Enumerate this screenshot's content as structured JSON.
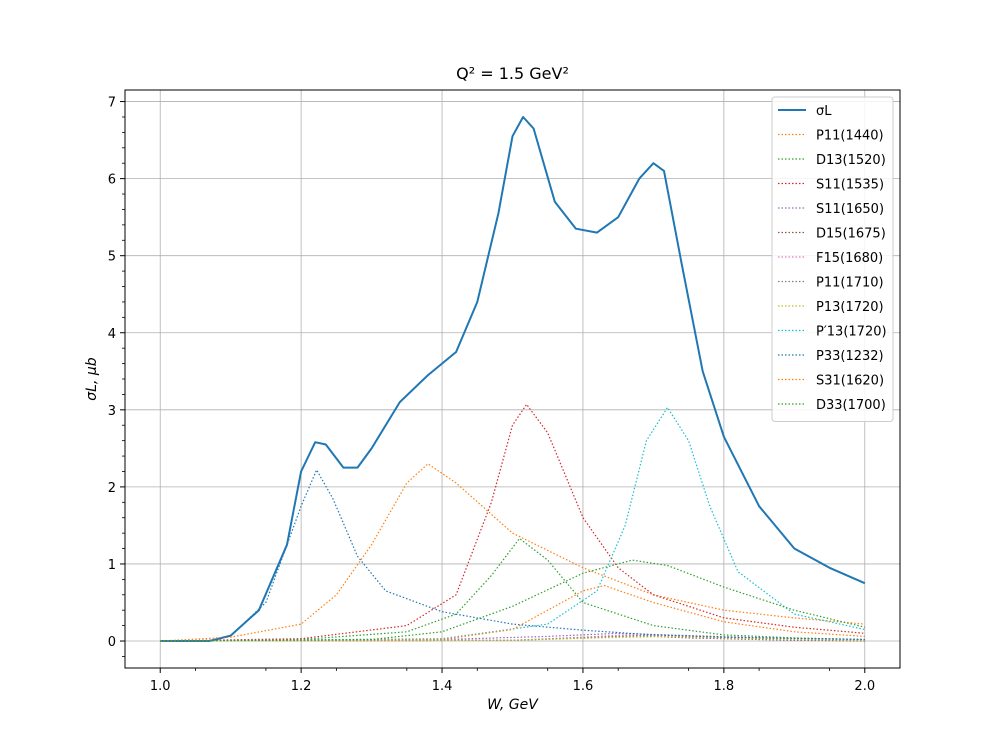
{
  "chart_data": {
    "type": "line",
    "title": "Q² = 1.5 GeV²",
    "xlabel": "W, GeV",
    "ylabel": "σL, μb",
    "xlim": [
      0.95,
      2.05
    ],
    "ylim": [
      -0.35,
      7.15
    ],
    "x_ticks": [
      "1.0",
      "1.2",
      "1.4",
      "1.6",
      "1.8",
      "2.0"
    ],
    "y_ticks": [
      "0",
      "1",
      "2",
      "3",
      "4",
      "5",
      "6",
      "7"
    ],
    "grid": true,
    "legend_position": "top-right",
    "series": [
      {
        "name": "σL",
        "color": "#1f77b4",
        "style": "solid",
        "x": [
          1.0,
          1.07,
          1.1,
          1.14,
          1.18,
          1.2,
          1.22,
          1.235,
          1.26,
          1.28,
          1.3,
          1.34,
          1.38,
          1.42,
          1.45,
          1.48,
          1.5,
          1.515,
          1.53,
          1.56,
          1.59,
          1.62,
          1.65,
          1.68,
          1.7,
          1.715,
          1.74,
          1.77,
          1.8,
          1.85,
          1.9,
          1.95,
          2.0
        ],
        "y": [
          0.0,
          0.0,
          0.07,
          0.4,
          1.25,
          2.2,
          2.58,
          2.55,
          2.25,
          2.25,
          2.5,
          3.1,
          3.45,
          3.75,
          4.4,
          5.55,
          6.55,
          6.8,
          6.65,
          5.7,
          5.35,
          5.3,
          5.5,
          6.0,
          6.2,
          6.1,
          4.9,
          3.5,
          2.65,
          1.75,
          1.2,
          0.95,
          0.75
        ]
      },
      {
        "name": "P11(1440)",
        "color": "#ff7f0e",
        "style": "dotted",
        "x": [
          1.0,
          1.1,
          1.2,
          1.25,
          1.3,
          1.35,
          1.38,
          1.42,
          1.5,
          1.6,
          1.7,
          1.8,
          1.9,
          2.0
        ],
        "y": [
          0.0,
          0.05,
          0.22,
          0.6,
          1.25,
          2.05,
          2.3,
          2.05,
          1.4,
          0.95,
          0.6,
          0.4,
          0.3,
          0.22
        ]
      },
      {
        "name": "D13(1520)",
        "color": "#2ca02c",
        "style": "dotted",
        "x": [
          1.0,
          1.2,
          1.35,
          1.42,
          1.47,
          1.51,
          1.55,
          1.6,
          1.7,
          1.8,
          1.9,
          2.0
        ],
        "y": [
          0.0,
          0.02,
          0.12,
          0.35,
          0.85,
          1.33,
          1.05,
          0.5,
          0.2,
          0.08,
          0.04,
          0.02
        ]
      },
      {
        "name": "S11(1535)",
        "color": "#d62728",
        "style": "dotted",
        "x": [
          1.0,
          1.2,
          1.35,
          1.42,
          1.47,
          1.5,
          1.52,
          1.55,
          1.6,
          1.65,
          1.7,
          1.8,
          1.9,
          2.0
        ],
        "y": [
          0.0,
          0.03,
          0.2,
          0.6,
          1.8,
          2.8,
          3.07,
          2.7,
          1.6,
          0.95,
          0.6,
          0.3,
          0.18,
          0.1
        ]
      },
      {
        "name": "S11(1650)",
        "color": "#9467bd",
        "style": "dotted",
        "x": [
          1.0,
          1.4,
          1.55,
          1.65,
          1.75,
          1.9,
          2.0
        ],
        "y": [
          0.0,
          0.02,
          0.06,
          0.1,
          0.07,
          0.03,
          0.02
        ]
      },
      {
        "name": "D15(1675)",
        "color": "#8c564b",
        "style": "dotted",
        "x": [
          1.0,
          1.5,
          1.6,
          1.675,
          1.75,
          1.9,
          2.0
        ],
        "y": [
          0.0,
          0.01,
          0.04,
          0.07,
          0.04,
          0.01,
          0.0
        ]
      },
      {
        "name": "F15(1680)",
        "color": "#e377c2",
        "style": "dotted",
        "x": [
          1.0,
          1.5,
          1.6,
          1.68,
          1.75,
          1.9,
          2.0
        ],
        "y": [
          0.0,
          0.01,
          0.05,
          0.09,
          0.05,
          0.02,
          0.01
        ]
      },
      {
        "name": "P11(1710)",
        "color": "#7f7f7f",
        "style": "dotted",
        "x": [
          1.0,
          1.5,
          1.62,
          1.71,
          1.8,
          1.9,
          2.0
        ],
        "y": [
          0.0,
          0.01,
          0.05,
          0.08,
          0.05,
          0.02,
          0.01
        ]
      },
      {
        "name": "P13(1720)",
        "color": "#bcbd22",
        "style": "dotted",
        "x": [
          1.0,
          1.5,
          1.62,
          1.72,
          1.8,
          1.9,
          2.0
        ],
        "y": [
          0.0,
          0.01,
          0.04,
          0.06,
          0.04,
          0.02,
          0.01
        ]
      },
      {
        "name": "P′13(1720)",
        "color": "#17becf",
        "style": "dotted",
        "x": [
          1.0,
          1.4,
          1.55,
          1.62,
          1.66,
          1.69,
          1.72,
          1.75,
          1.78,
          1.82,
          1.9,
          2.0
        ],
        "y": [
          0.0,
          0.03,
          0.22,
          0.65,
          1.5,
          2.6,
          3.03,
          2.6,
          1.75,
          0.9,
          0.35,
          0.15
        ]
      },
      {
        "name": "P33(1232)",
        "color": "#1f77b4",
        "style": "dotted",
        "x": [
          1.0,
          1.07,
          1.1,
          1.15,
          1.2,
          1.222,
          1.245,
          1.28,
          1.32,
          1.4,
          1.5,
          1.6,
          1.7,
          1.8,
          2.0
        ],
        "y": [
          0.0,
          0.0,
          0.07,
          0.5,
          1.75,
          2.22,
          1.85,
          1.1,
          0.65,
          0.38,
          0.22,
          0.14,
          0.08,
          0.05,
          0.02
        ]
      },
      {
        "name": "S31(1620)",
        "color": "#ff7f0e",
        "style": "dotted",
        "x": [
          1.0,
          1.4,
          1.5,
          1.55,
          1.6,
          1.63,
          1.7,
          1.8,
          1.9,
          2.0
        ],
        "y": [
          0.0,
          0.02,
          0.15,
          0.4,
          0.65,
          0.72,
          0.5,
          0.25,
          0.12,
          0.06
        ]
      },
      {
        "name": "D33(1700)",
        "color": "#2ca02c",
        "style": "dotted",
        "x": [
          1.0,
          1.3,
          1.4,
          1.5,
          1.6,
          1.67,
          1.72,
          1.8,
          1.9,
          2.0
        ],
        "y": [
          0.0,
          0.02,
          0.12,
          0.45,
          0.88,
          1.05,
          0.98,
          0.7,
          0.4,
          0.18
        ]
      }
    ]
  }
}
